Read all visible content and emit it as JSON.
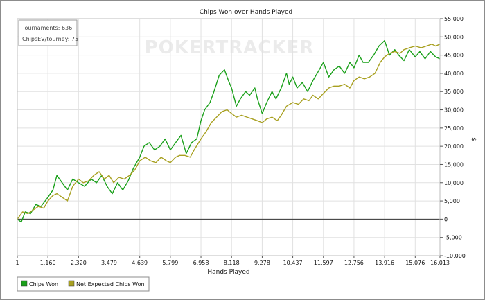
{
  "chart_data": {
    "type": "line",
    "title": "Chips Won over Hands Played",
    "xlabel": "Hands Played",
    "ylabel": "$",
    "xlim": [
      1,
      16013
    ],
    "ylim": [
      -10000,
      55000
    ],
    "x_ticks": [
      "1",
      "1,160",
      "2,320",
      "3,479",
      "4,639",
      "5,799",
      "6,958",
      "8,118",
      "9,278",
      "10,437",
      "11,597",
      "12,756",
      "13,916",
      "15,076",
      "16,013"
    ],
    "y_ticks": [
      "55,000",
      "50,000",
      "45,000",
      "40,000",
      "35,000",
      "30,000",
      "25,000",
      "20,000",
      "15,000",
      "10,000",
      "5,000",
      "0",
      "-5,000",
      "-10,000"
    ],
    "grid": true,
    "legend_position": "bottom-left",
    "watermark": "POKERTRACKER",
    "info_box": [
      "Tournaments: 636",
      "ChipsEV/tourney: 75"
    ],
    "series": [
      {
        "name": "Chips Won",
        "color": "#1aa01a",
        "points": [
          [
            1,
            0
          ],
          [
            150,
            -800
          ],
          [
            300,
            2000
          ],
          [
            500,
            1500
          ],
          [
            700,
            4000
          ],
          [
            900,
            3500
          ],
          [
            1160,
            6000
          ],
          [
            1350,
            8000
          ],
          [
            1500,
            12000
          ],
          [
            1700,
            10000
          ],
          [
            1900,
            8000
          ],
          [
            2100,
            11000
          ],
          [
            2320,
            10000
          ],
          [
            2550,
            9000
          ],
          [
            2800,
            11000
          ],
          [
            3000,
            10000
          ],
          [
            3200,
            12000
          ],
          [
            3400,
            9000
          ],
          [
            3600,
            7000
          ],
          [
            3800,
            10000
          ],
          [
            4000,
            8000
          ],
          [
            4200,
            10500
          ],
          [
            4400,
            14000
          ],
          [
            4639,
            17000
          ],
          [
            4800,
            20000
          ],
          [
            5000,
            21000
          ],
          [
            5200,
            19000
          ],
          [
            5400,
            20000
          ],
          [
            5600,
            22000
          ],
          [
            5799,
            19000
          ],
          [
            6000,
            21000
          ],
          [
            6200,
            23000
          ],
          [
            6400,
            18000
          ],
          [
            6600,
            21000
          ],
          [
            6800,
            22000
          ],
          [
            6958,
            27000
          ],
          [
            7100,
            30000
          ],
          [
            7300,
            32000
          ],
          [
            7450,
            35000
          ],
          [
            7650,
            39500
          ],
          [
            7850,
            41000
          ],
          [
            8000,
            38000
          ],
          [
            8118,
            36000
          ],
          [
            8300,
            31000
          ],
          [
            8450,
            33000
          ],
          [
            8650,
            35000
          ],
          [
            8800,
            34000
          ],
          [
            9000,
            36000
          ],
          [
            9100,
            33000
          ],
          [
            9278,
            29000
          ],
          [
            9450,
            32000
          ],
          [
            9650,
            35000
          ],
          [
            9800,
            33000
          ],
          [
            10000,
            36000
          ],
          [
            10200,
            40000
          ],
          [
            10300,
            37000
          ],
          [
            10437,
            39000
          ],
          [
            10600,
            36000
          ],
          [
            10800,
            37500
          ],
          [
            11000,
            35000
          ],
          [
            11200,
            38000
          ],
          [
            11400,
            40500
          ],
          [
            11597,
            43000
          ],
          [
            11800,
            39000
          ],
          [
            12000,
            41000
          ],
          [
            12200,
            42000
          ],
          [
            12400,
            40000
          ],
          [
            12600,
            43000
          ],
          [
            12756,
            41500
          ],
          [
            12950,
            45000
          ],
          [
            13100,
            43000
          ],
          [
            13300,
            43000
          ],
          [
            13500,
            45000
          ],
          [
            13700,
            47500
          ],
          [
            13916,
            49000
          ],
          [
            14100,
            45000
          ],
          [
            14300,
            46500
          ],
          [
            14450,
            45000
          ],
          [
            14650,
            43500
          ],
          [
            14850,
            46500
          ],
          [
            15076,
            44500
          ],
          [
            15250,
            46000
          ],
          [
            15450,
            44000
          ],
          [
            15650,
            46000
          ],
          [
            15850,
            44500
          ],
          [
            16013,
            44000
          ]
        ]
      },
      {
        "name": "Net Expected Chips Won",
        "color": "#a8a020",
        "points": [
          [
            1,
            0
          ],
          [
            200,
            2000
          ],
          [
            400,
            1500
          ],
          [
            600,
            2500
          ],
          [
            800,
            3500
          ],
          [
            1000,
            3000
          ],
          [
            1160,
            5000
          ],
          [
            1350,
            6500
          ],
          [
            1500,
            7000
          ],
          [
            1700,
            6000
          ],
          [
            1900,
            5000
          ],
          [
            2100,
            9000
          ],
          [
            2320,
            11000
          ],
          [
            2500,
            10000
          ],
          [
            2700,
            10500
          ],
          [
            2900,
            12000
          ],
          [
            3100,
            13000
          ],
          [
            3300,
            11000
          ],
          [
            3479,
            12000
          ],
          [
            3650,
            10000
          ],
          [
            3850,
            11500
          ],
          [
            4050,
            11000
          ],
          [
            4250,
            12000
          ],
          [
            4450,
            13500
          ],
          [
            4639,
            16000
          ],
          [
            4850,
            17000
          ],
          [
            5050,
            16000
          ],
          [
            5250,
            15500
          ],
          [
            5450,
            17000
          ],
          [
            5650,
            16000
          ],
          [
            5799,
            15500
          ],
          [
            6000,
            17000
          ],
          [
            6150,
            17500
          ],
          [
            6350,
            17500
          ],
          [
            6550,
            17000
          ],
          [
            6700,
            19000
          ],
          [
            6958,
            22000
          ],
          [
            7150,
            24000
          ],
          [
            7350,
            26500
          ],
          [
            7550,
            28000
          ],
          [
            7750,
            29500
          ],
          [
            7950,
            30000
          ],
          [
            8118,
            29000
          ],
          [
            8300,
            28000
          ],
          [
            8500,
            28500
          ],
          [
            8700,
            28000
          ],
          [
            8900,
            27500
          ],
          [
            9100,
            27000
          ],
          [
            9278,
            26500
          ],
          [
            9450,
            27500
          ],
          [
            9650,
            28000
          ],
          [
            9850,
            27000
          ],
          [
            10000,
            28500
          ],
          [
            10200,
            31000
          ],
          [
            10437,
            32000
          ],
          [
            10650,
            31500
          ],
          [
            10850,
            33000
          ],
          [
            11050,
            32500
          ],
          [
            11200,
            34000
          ],
          [
            11400,
            33000
          ],
          [
            11597,
            34500
          ],
          [
            11800,
            36000
          ],
          [
            12000,
            36500
          ],
          [
            12200,
            36500
          ],
          [
            12400,
            37000
          ],
          [
            12600,
            36000
          ],
          [
            12756,
            38000
          ],
          [
            12950,
            39000
          ],
          [
            13150,
            38500
          ],
          [
            13350,
            39000
          ],
          [
            13550,
            40000
          ],
          [
            13750,
            43000
          ],
          [
            13916,
            44500
          ],
          [
            14100,
            45500
          ],
          [
            14300,
            46000
          ],
          [
            14500,
            45500
          ],
          [
            14650,
            46500
          ],
          [
            14850,
            47000
          ],
          [
            15076,
            47500
          ],
          [
            15300,
            47000
          ],
          [
            15500,
            47500
          ],
          [
            15700,
            48000
          ],
          [
            15850,
            47500
          ],
          [
            16013,
            48000
          ]
        ]
      }
    ]
  }
}
